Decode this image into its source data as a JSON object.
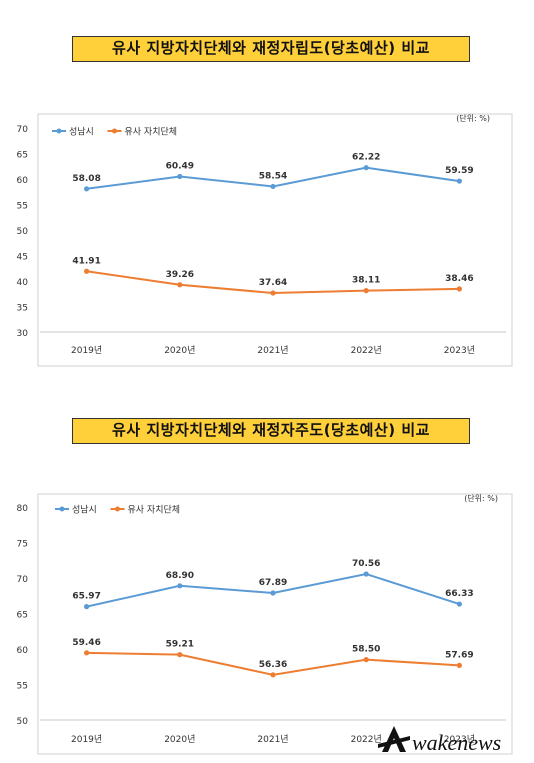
{
  "chart_data": [
    {
      "type": "line",
      "title": "유사 지방자치단체와 재정자립도(당초예산) 비교",
      "unit_note": "(단위: %)",
      "categories": [
        "2019년",
        "2020년",
        "2021년",
        "2022년",
        "2023년"
      ],
      "ylim": [
        30,
        70
      ],
      "yticks": [
        30,
        35,
        40,
        45,
        50,
        55,
        60,
        65,
        70
      ],
      "grid": false,
      "legend_position": "top-left",
      "series": [
        {
          "name": "성남시",
          "color": "#5b9bd5",
          "values": [
            58.08,
            60.49,
            58.54,
            62.22,
            59.59
          ],
          "labels": [
            "58.08",
            "60.49",
            "58.54",
            "62.22",
            "59.59"
          ]
        },
        {
          "name": "유사 자치단체",
          "color": "#ed7d31",
          "values": [
            41.91,
            39.26,
            37.64,
            38.11,
            38.46
          ],
          "labels": [
            "41.91",
            "39.26",
            "37.64",
            "38.11",
            "38.46"
          ]
        }
      ]
    },
    {
      "type": "line",
      "title": "유사 지방자치단체와 재정자주도(당초예산) 비교",
      "unit_note": "(단위: %)",
      "categories": [
        "2019년",
        "2020년",
        "2021년",
        "2022년",
        "2023년"
      ],
      "ylim": [
        50,
        80
      ],
      "yticks": [
        50,
        55,
        60,
        65,
        70,
        75,
        80
      ],
      "grid": false,
      "legend_position": "top-left",
      "series": [
        {
          "name": "성남시",
          "color": "#5b9bd5",
          "values": [
            65.97,
            68.9,
            67.89,
            70.56,
            66.33
          ],
          "labels": [
            "65.97",
            "68.90",
            "67.89",
            "70.56",
            "66.33"
          ]
        },
        {
          "name": "유사 자치단체",
          "color": "#ed7d31",
          "values": [
            59.46,
            59.21,
            56.36,
            58.5,
            57.69
          ],
          "labels": [
            "59.46",
            "59.21",
            "56.36",
            "58.50",
            "57.69"
          ]
        }
      ]
    }
  ],
  "watermark": {
    "text": "Awakenews"
  }
}
